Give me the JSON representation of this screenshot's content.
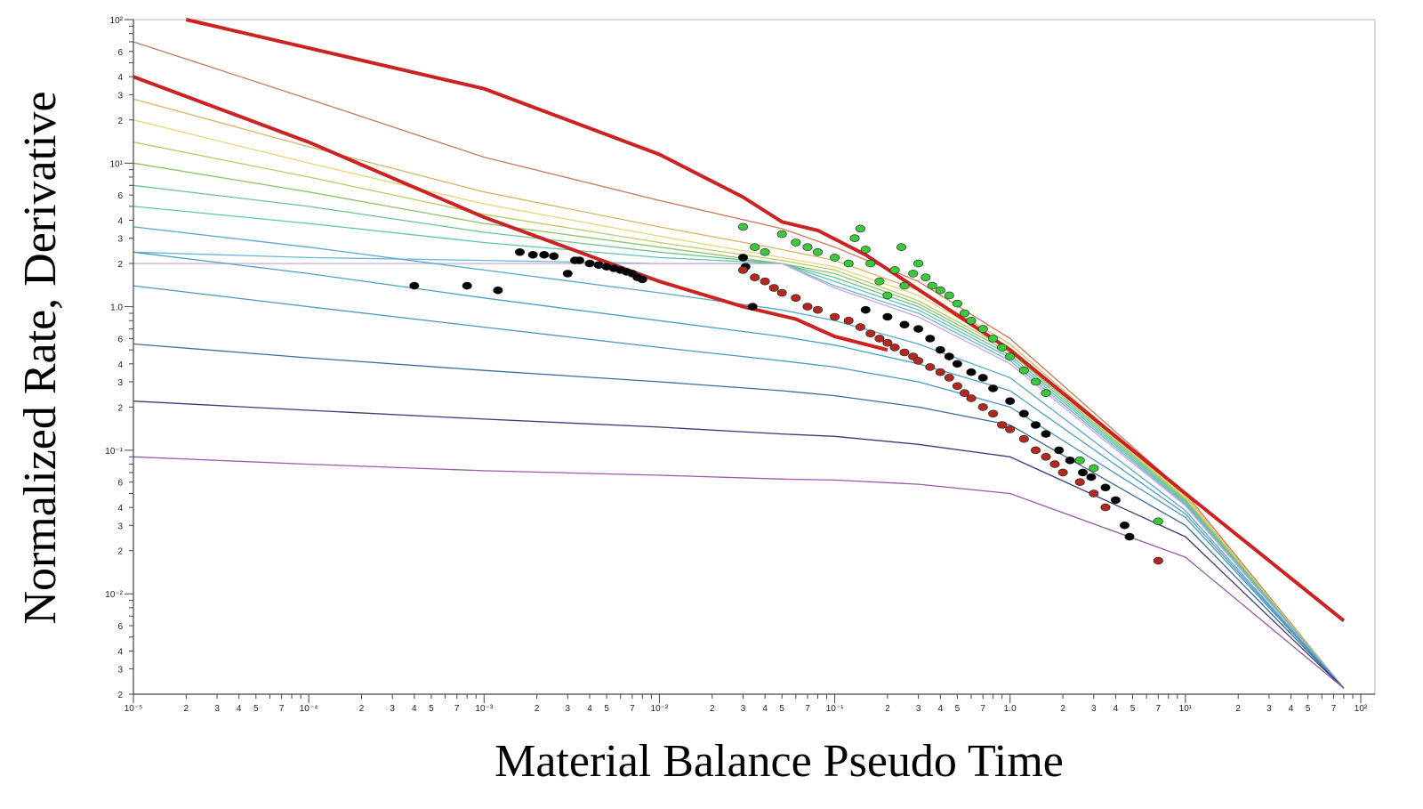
{
  "chart_data": {
    "type": "line",
    "title": "",
    "xlabel": "Material Balance Pseudo Time",
    "ylabel": "Normalized Rate,  Derivative",
    "x_scale": "log",
    "y_scale": "log",
    "xlim": [
      1e-05,
      100
    ],
    "ylim": [
      0.002,
      100
    ],
    "grid": false,
    "legend": "none",
    "x_tick_labels": [
      "10⁻⁵",
      "2",
      "3",
      "4",
      "5",
      "7",
      "10⁻⁴",
      "2",
      "3",
      "4",
      "5",
      "7",
      "10⁻³",
      "2",
      "3",
      "4",
      "5",
      "7",
      "10⁻²",
      "2",
      "3",
      "4",
      "5",
      "7",
      "10⁻¹",
      "2",
      "3",
      "4",
      "5",
      "7",
      "1.0",
      "2",
      "3",
      "4",
      "5",
      "7",
      "10¹",
      "2",
      "3",
      "4",
      "5",
      "7",
      "10²"
    ],
    "y_tick_labels": [
      "2",
      "3",
      "4",
      "6",
      "10⁻²",
      "2",
      "3",
      "4",
      "6",
      "10⁻¹",
      "2",
      "3",
      "4",
      "6",
      "1.0",
      "2",
      "3",
      "4",
      "6",
      "10¹",
      "2",
      "3",
      "4",
      "6",
      "10²"
    ],
    "boundary_lines": {
      "color": "#cc2222",
      "series": [
        {
          "x": [
            2e-05,
            0.001,
            0.01,
            0.03,
            0.05,
            0.08,
            0.15,
            1.0,
            10,
            80
          ],
          "y": [
            100,
            33,
            11.5,
            5.8,
            3.9,
            3.4,
            2.3,
            0.5,
            0.05,
            0.0065
          ]
        },
        {
          "x": [
            1e-05,
            0.0001,
            0.001,
            0.01,
            0.03,
            0.06,
            0.1,
            0.2
          ],
          "y": [
            40,
            14,
            4.2,
            1.5,
            1.0,
            0.82,
            0.62,
            0.5
          ]
        }
      ]
    },
    "type_curves": [
      {
        "color": "#c87a55",
        "x": [
          1e-05,
          0.0001,
          0.001,
          0.01,
          0.05,
          0.1,
          0.3,
          1,
          10,
          80
        ],
        "y": [
          70,
          28,
          11,
          5.5,
          3.5,
          2.6,
          1.5,
          0.6,
          0.05,
          0.0022
        ]
      },
      {
        "color": "#d8b46a",
        "x": [
          1e-05,
          0.0001,
          0.001,
          0.01,
          0.05,
          0.1,
          0.3,
          1,
          10,
          80
        ],
        "y": [
          28,
          13,
          6.3,
          3.6,
          2.5,
          2.1,
          1.3,
          0.55,
          0.048,
          0.0022
        ]
      },
      {
        "color": "#e8d47a",
        "x": [
          1e-05,
          0.0001,
          0.001,
          0.01,
          0.05,
          0.1,
          0.3,
          1,
          10,
          80
        ],
        "y": [
          20,
          10,
          5.2,
          3.1,
          2.2,
          1.9,
          1.2,
          0.52,
          0.047,
          0.0022
        ]
      },
      {
        "color": "#b8cc6a",
        "x": [
          1e-05,
          0.0001,
          0.001,
          0.01,
          0.05,
          0.1,
          0.3,
          1,
          10,
          80
        ],
        "y": [
          14,
          8,
          4.4,
          2.8,
          2.1,
          1.8,
          1.1,
          0.5,
          0.046,
          0.0022
        ]
      },
      {
        "color": "#8cc46a",
        "x": [
          1e-05,
          0.0001,
          0.001,
          0.01,
          0.05,
          0.1,
          0.3,
          1,
          10,
          80
        ],
        "y": [
          10,
          6.3,
          3.8,
          2.6,
          2.0,
          1.7,
          1.05,
          0.48,
          0.045,
          0.0022
        ]
      },
      {
        "color": "#6cc48a",
        "x": [
          1e-05,
          0.0001,
          0.001,
          0.01,
          0.05,
          0.1,
          0.3,
          1,
          10,
          80
        ],
        "y": [
          7,
          5,
          3.3,
          2.4,
          2.0,
          1.6,
          1.0,
          0.46,
          0.044,
          0.0022
        ]
      },
      {
        "color": "#5cc4b4",
        "x": [
          1e-05,
          0.0001,
          0.001,
          0.01,
          0.05,
          0.1,
          0.3,
          1,
          10,
          80
        ],
        "y": [
          5,
          3.8,
          2.8,
          2.2,
          2.0,
          1.5,
          0.95,
          0.44,
          0.043,
          0.0022
        ]
      },
      {
        "color": "#6ab4d8",
        "x": [
          1e-05,
          0.0001,
          0.001,
          0.01,
          0.05,
          0.1,
          0.3,
          1,
          10,
          80
        ],
        "y": [
          2.4,
          2.2,
          2.1,
          2.0,
          2.0,
          1.4,
          0.9,
          0.42,
          0.042,
          0.0022
        ]
      },
      {
        "color": "#c8a8d8",
        "x": [
          1e-05,
          0.0001,
          0.001,
          0.01,
          0.05,
          0.1,
          0.3,
          1,
          10,
          80
        ],
        "y": [
          2.0,
          2.0,
          2.0,
          2.0,
          2.0,
          1.35,
          0.85,
          0.4,
          0.041,
          0.0022
        ]
      },
      {
        "color": "#5aa8cc",
        "x": [
          1e-05,
          0.0001,
          0.001,
          0.01,
          0.05,
          0.1,
          0.3,
          1,
          10,
          80
        ],
        "y": [
          3.6,
          2.6,
          1.8,
          1.25,
          0.95,
          0.8,
          0.55,
          0.32,
          0.038,
          0.0022
        ]
      },
      {
        "color": "#4aa0c4",
        "x": [
          1e-05,
          0.0001,
          0.001,
          0.01,
          0.05,
          0.1,
          0.3,
          1,
          10,
          80
        ],
        "y": [
          2.4,
          1.7,
          1.15,
          0.8,
          0.62,
          0.54,
          0.4,
          0.26,
          0.036,
          0.0022
        ]
      },
      {
        "color": "#4a98bc",
        "x": [
          1e-05,
          0.0001,
          0.001,
          0.01,
          0.05,
          0.1,
          0.3,
          1,
          10,
          80
        ],
        "y": [
          1.4,
          1.0,
          0.72,
          0.52,
          0.42,
          0.38,
          0.3,
          0.2,
          0.034,
          0.0022
        ]
      },
      {
        "color": "#3c6c9c",
        "x": [
          1e-05,
          0.0001,
          0.001,
          0.01,
          0.05,
          0.1,
          0.3,
          1,
          10,
          80
        ],
        "y": [
          0.55,
          0.44,
          0.36,
          0.3,
          0.26,
          0.24,
          0.2,
          0.15,
          0.03,
          0.0022
        ]
      },
      {
        "color": "#3a3a7a",
        "x": [
          1e-05,
          0.0001,
          0.001,
          0.01,
          0.05,
          0.1,
          0.3,
          1,
          10,
          80
        ],
        "y": [
          0.22,
          0.19,
          0.165,
          0.145,
          0.13,
          0.125,
          0.11,
          0.09,
          0.025,
          0.0022
        ]
      },
      {
        "color": "#9a5aa8",
        "x": [
          1e-05,
          0.0001,
          0.001,
          0.01,
          0.05,
          0.1,
          0.3,
          1,
          10,
          80
        ],
        "y": [
          0.09,
          0.08,
          0.072,
          0.067,
          0.063,
          0.062,
          0.058,
          0.05,
          0.018,
          0.0022
        ]
      }
    ],
    "scatter_series": [
      {
        "name": "",
        "color": "#000000",
        "x": [
          0.0004,
          0.0008,
          0.0012,
          0.0016,
          0.0019,
          0.0022,
          0.0025,
          0.003,
          0.0033,
          0.0035,
          0.004,
          0.0045,
          0.005,
          0.0055,
          0.006,
          0.0065,
          0.007,
          0.0075,
          0.008,
          0.03,
          0.031,
          0.034,
          0.15,
          0.2,
          0.25,
          0.3,
          0.35,
          0.4,
          0.45,
          0.5,
          0.6,
          0.7,
          0.8,
          1.0,
          1.2,
          1.4,
          1.6,
          1.9,
          2.2,
          2.6,
          2.9,
          3.5,
          4.0,
          4.5,
          4.8
        ],
        "y": [
          1.4,
          1.4,
          1.3,
          2.4,
          2.3,
          2.3,
          2.25,
          1.7,
          2.1,
          2.1,
          2.0,
          1.95,
          1.9,
          1.85,
          1.8,
          1.75,
          1.7,
          1.6,
          1.55,
          2.2,
          1.9,
          1.0,
          0.95,
          0.85,
          0.75,
          0.7,
          0.6,
          0.5,
          0.45,
          0.4,
          0.35,
          0.32,
          0.27,
          0.22,
          0.18,
          0.15,
          0.13,
          0.1,
          0.085,
          0.07,
          0.065,
          0.055,
          0.045,
          0.03,
          0.025
        ]
      },
      {
        "name": "",
        "color": "#b0281e",
        "x": [
          0.03,
          0.035,
          0.04,
          0.045,
          0.05,
          0.06,
          0.07,
          0.08,
          0.1,
          0.12,
          0.14,
          0.16,
          0.18,
          0.2,
          0.22,
          0.25,
          0.28,
          0.3,
          0.35,
          0.4,
          0.45,
          0.5,
          0.55,
          0.6,
          0.7,
          0.8,
          0.9,
          1.0,
          1.2,
          1.4,
          1.6,
          1.8,
          2.0,
          2.5,
          3.0,
          3.5,
          7.0
        ],
        "y": [
          1.8,
          1.6,
          1.5,
          1.35,
          1.25,
          1.15,
          1.0,
          0.95,
          0.85,
          0.8,
          0.72,
          0.65,
          0.6,
          0.56,
          0.52,
          0.48,
          0.45,
          0.42,
          0.38,
          0.35,
          0.32,
          0.28,
          0.25,
          0.23,
          0.2,
          0.18,
          0.15,
          0.14,
          0.12,
          0.1,
          0.09,
          0.08,
          0.07,
          0.06,
          0.05,
          0.04,
          0.017
        ]
      },
      {
        "name": "",
        "color": "#3cc83c",
        "x": [
          0.03,
          0.035,
          0.04,
          0.05,
          0.06,
          0.07,
          0.08,
          0.1,
          0.12,
          0.13,
          0.14,
          0.15,
          0.16,
          0.18,
          0.2,
          0.22,
          0.24,
          0.25,
          0.28,
          0.3,
          0.33,
          0.36,
          0.4,
          0.45,
          0.5,
          0.55,
          0.6,
          0.7,
          0.8,
          0.9,
          1.0,
          1.2,
          1.4,
          1.6,
          2.5,
          3.0,
          7.0
        ],
        "y": [
          3.6,
          2.6,
          2.4,
          3.2,
          2.8,
          2.6,
          2.4,
          2.2,
          2.0,
          3.0,
          3.5,
          2.5,
          2.0,
          1.5,
          1.2,
          1.8,
          2.6,
          1.4,
          1.7,
          2.0,
          1.6,
          1.4,
          1.3,
          1.2,
          1.05,
          0.9,
          0.8,
          0.7,
          0.6,
          0.52,
          0.45,
          0.36,
          0.3,
          0.25,
          0.085,
          0.075,
          0.032
        ]
      }
    ]
  }
}
